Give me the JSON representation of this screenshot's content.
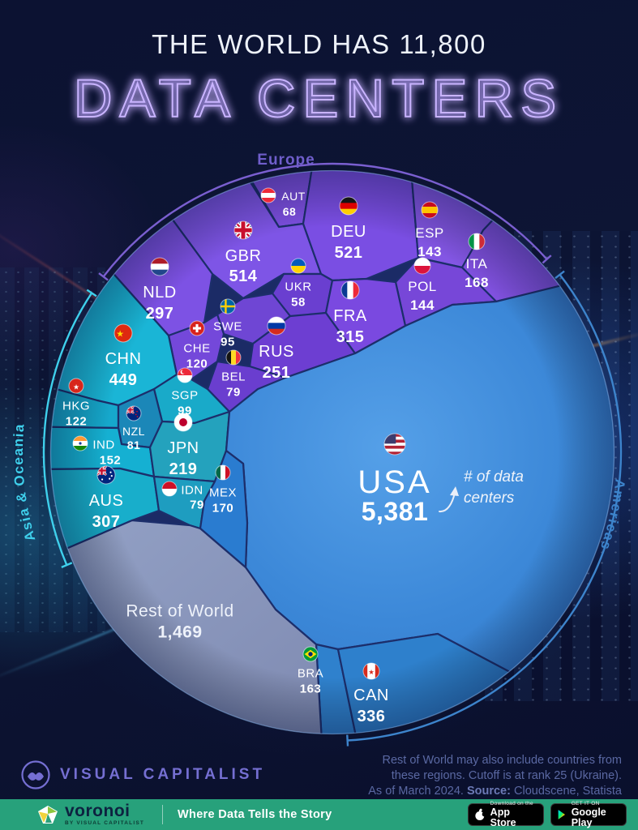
{
  "title": {
    "line1": "THE WORLD HAS 11,800",
    "line2": "DATA CENTERS"
  },
  "chart_data": {
    "type": "voronoi-treemap",
    "title": "The World Has 11,800 Data Centers",
    "total_label": "11,800",
    "unit": "# of data centers",
    "as_of": "As of March 2024",
    "regions": [
      {
        "name": "Europe",
        "color": "#7a5fd0",
        "countries": [
          {
            "code": "AUT",
            "value": "68",
            "fill": "#7c4fe0"
          },
          {
            "code": "GBR",
            "value": "514",
            "fill": "#7e55e6"
          },
          {
            "code": "DEU",
            "value": "521",
            "fill": "#7a4ee3"
          },
          {
            "code": "ESP",
            "value": "143",
            "fill": "#8356e4"
          },
          {
            "code": "ITA",
            "value": "168",
            "fill": "#8051df"
          },
          {
            "code": "NLD",
            "value": "297",
            "fill": "#7d52e4"
          },
          {
            "code": "UKR",
            "value": "58",
            "fill": "#6a3fd0"
          },
          {
            "code": "POL",
            "value": "144",
            "fill": "#7747d8"
          },
          {
            "code": "FRA",
            "value": "315",
            "fill": "#7a49e0"
          },
          {
            "code": "SWE",
            "value": "95",
            "fill": "#6f46d4"
          },
          {
            "code": "CHE",
            "value": "120",
            "fill": "#7448da"
          },
          {
            "code": "RUS",
            "value": "251",
            "fill": "#6d3ed2"
          },
          {
            "code": "BEL",
            "value": "79",
            "fill": "#6a3ecf"
          }
        ]
      },
      {
        "name": "Asia & Oceania",
        "color": "#3fd0ec",
        "countries": [
          {
            "code": "CHN",
            "value": "449",
            "fill": "#1ab5d6"
          },
          {
            "code": "HKG",
            "value": "122",
            "fill": "#16a8cc"
          },
          {
            "code": "SGP",
            "value": "99",
            "fill": "#19aac9"
          },
          {
            "code": "NZL",
            "value": "81",
            "fill": "#1b87b8"
          },
          {
            "code": "IND",
            "value": "152",
            "fill": "#15b0d2"
          },
          {
            "code": "JPN",
            "value": "219",
            "fill": "#24a2bd"
          },
          {
            "code": "AUS",
            "value": "307",
            "fill": "#18aecb"
          },
          {
            "code": "IDN",
            "value": "79",
            "fill": "#1e9dc0"
          }
        ]
      },
      {
        "name": "Americas",
        "color": "#3d84cc",
        "countries": [
          {
            "code": "USA",
            "value": "5,381",
            "fill": "#3c88d8"
          },
          {
            "code": "MEX",
            "value": "170",
            "fill": "#2a7cd0"
          },
          {
            "code": "BRA",
            "value": "163",
            "fill": "#2f81cd"
          },
          {
            "code": "CAN",
            "value": "336",
            "fill": "#2e80cc"
          }
        ]
      },
      {
        "name": "Rest of World",
        "color": "#8f9cc2",
        "countries": [
          {
            "code": "ROW",
            "label": "Rest of World",
            "value": "1,469",
            "fill": "#8f9cc2"
          }
        ]
      }
    ]
  },
  "annotation": {
    "line1": "# of data",
    "line2": "centers"
  },
  "region_labels": {
    "europe": "Europe",
    "asia": "Asia & Oceania",
    "americas": "Americas"
  },
  "footer": {
    "brand": "VISUAL CAPITALIST",
    "note_line1": "Rest of World may also include countries from",
    "note_line2": "these regions. Cutoff is at rank 25 (Ukraine).",
    "note_line3_prefix": "As of March 2024. ",
    "note_line3_bold": "Source:",
    "note_line3_suffix": " Cloudscene, Statista"
  },
  "bottom_bar": {
    "logo": "voronoi",
    "logo_sub": "BY VISUAL CAPITALIST",
    "tagline": "Where Data Tells the Story",
    "appstore_top": "Download on the",
    "appstore_bottom": "App Store",
    "gplay_top": "GET IT ON",
    "gplay_bottom": "Google Play"
  }
}
